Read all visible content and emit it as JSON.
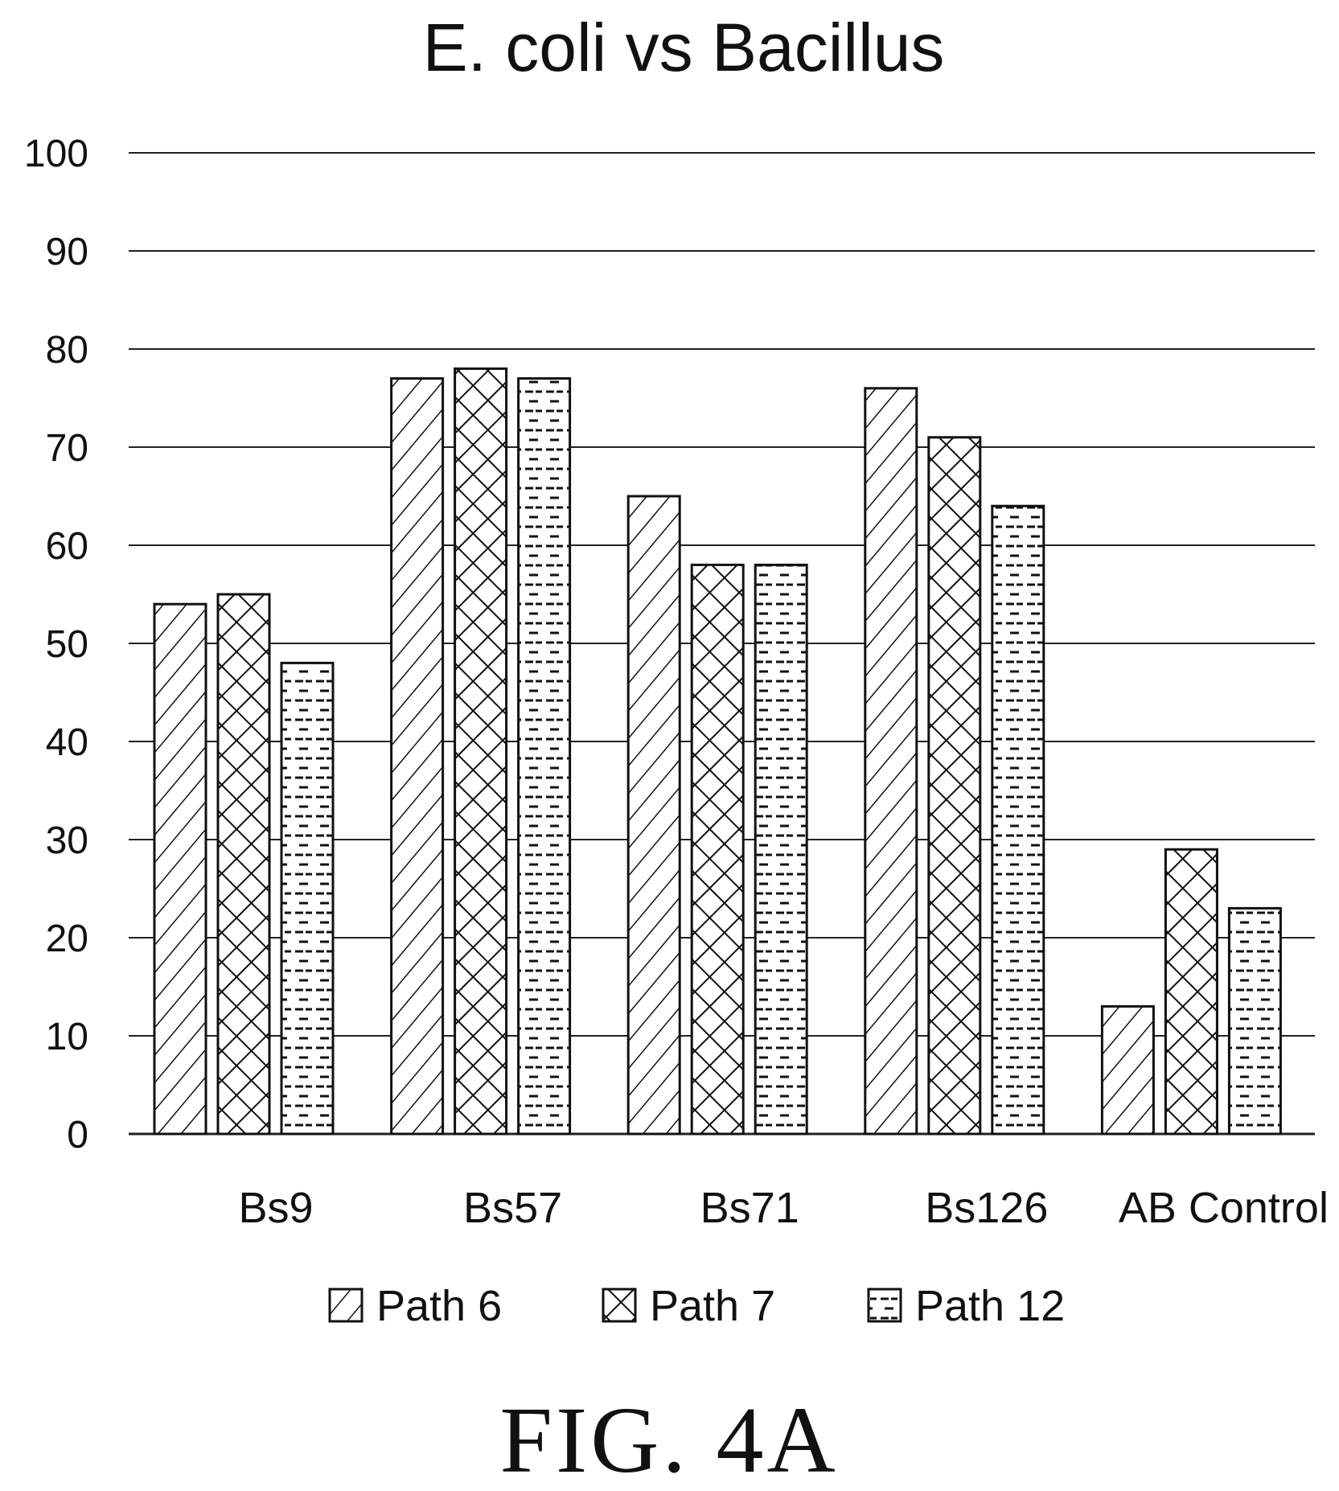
{
  "chart_data": {
    "type": "bar",
    "title": "E. coli vs Bacillus",
    "xlabel": "",
    "ylabel": "",
    "ylim": [
      0,
      100
    ],
    "yticks": [
      0,
      10,
      20,
      30,
      40,
      50,
      60,
      70,
      80,
      90,
      100
    ],
    "grid": true,
    "legend_position": "bottom",
    "categories": [
      "Bs9",
      "Bs57",
      "Bs71",
      "Bs126",
      "AB Control"
    ],
    "series": [
      {
        "name": "Path 6",
        "pattern": "diagonal-hatch",
        "values": [
          54,
          77,
          65,
          76,
          13
        ]
      },
      {
        "name": "Path 7",
        "pattern": "crosshatch",
        "values": [
          55,
          78,
          58,
          71,
          29
        ]
      },
      {
        "name": "Path 12",
        "pattern": "dashes",
        "values": [
          48,
          77,
          58,
          64,
          23
        ]
      }
    ]
  },
  "figure_label": "FIG. 4A",
  "colors": {
    "ink": "#111111",
    "background": "#ffffff",
    "grid": "#222222"
  }
}
